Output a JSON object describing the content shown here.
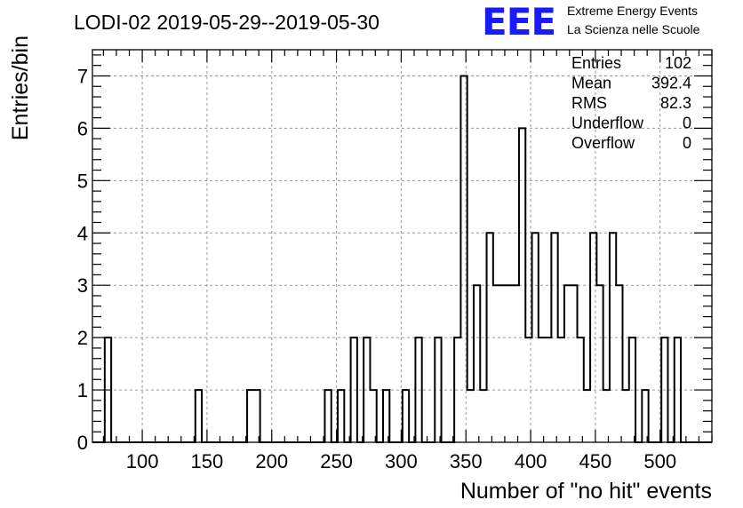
{
  "colors": {
    "logo": "#1a1aff",
    "grid": "#9a9a9a",
    "line": "#000000"
  },
  "header": {
    "title": "LODI-02 2019-05-29--2019-05-30",
    "logo_text": "EEE",
    "logo_line1": "Extreme Energy Events",
    "logo_line2": "La Scienza nelle Scuole"
  },
  "stats": [
    {
      "label": "Entries",
      "value": "102"
    },
    {
      "label": "Mean",
      "value": "392.4"
    },
    {
      "label": "RMS",
      "value": "82.3"
    },
    {
      "label": "Underflow",
      "value": "0"
    },
    {
      "label": "Overflow",
      "value": "0"
    }
  ],
  "chart_data": {
    "type": "bar",
    "histogram": true,
    "title": "LODI-02 2019-05-29--2019-05-30",
    "xlabel": "Number of \"no hit\" events",
    "ylabel": "Entries/bin",
    "xlim": [
      61.5,
      540
    ],
    "ylim": [
      0,
      7.5
    ],
    "grid": true,
    "bin_width": 5,
    "first_bin_start": 71,
    "x_ticks": [
      100,
      150,
      200,
      250,
      300,
      350,
      400,
      450,
      500
    ],
    "y_ticks": [
      0,
      1,
      2,
      3,
      4,
      5,
      6,
      7
    ],
    "counts": [
      2,
      0,
      0,
      0,
      0,
      0,
      0,
      0,
      0,
      0,
      0,
      0,
      0,
      0,
      1,
      0,
      0,
      0,
      0,
      0,
      0,
      0,
      1,
      1,
      0,
      0,
      0,
      0,
      0,
      0,
      0,
      0,
      0,
      0,
      1,
      0,
      1,
      0,
      2,
      0,
      2,
      1,
      0,
      1,
      0,
      0,
      1,
      0,
      2,
      0,
      0,
      2,
      0,
      0,
      2,
      7,
      1,
      3,
      1,
      4,
      3,
      3,
      3,
      3,
      6,
      2,
      4,
      2,
      2,
      4,
      2,
      3,
      3,
      2,
      1,
      4,
      3,
      1,
      4,
      3,
      1,
      2,
      0,
      1,
      0,
      0,
      2,
      0,
      2
    ]
  }
}
